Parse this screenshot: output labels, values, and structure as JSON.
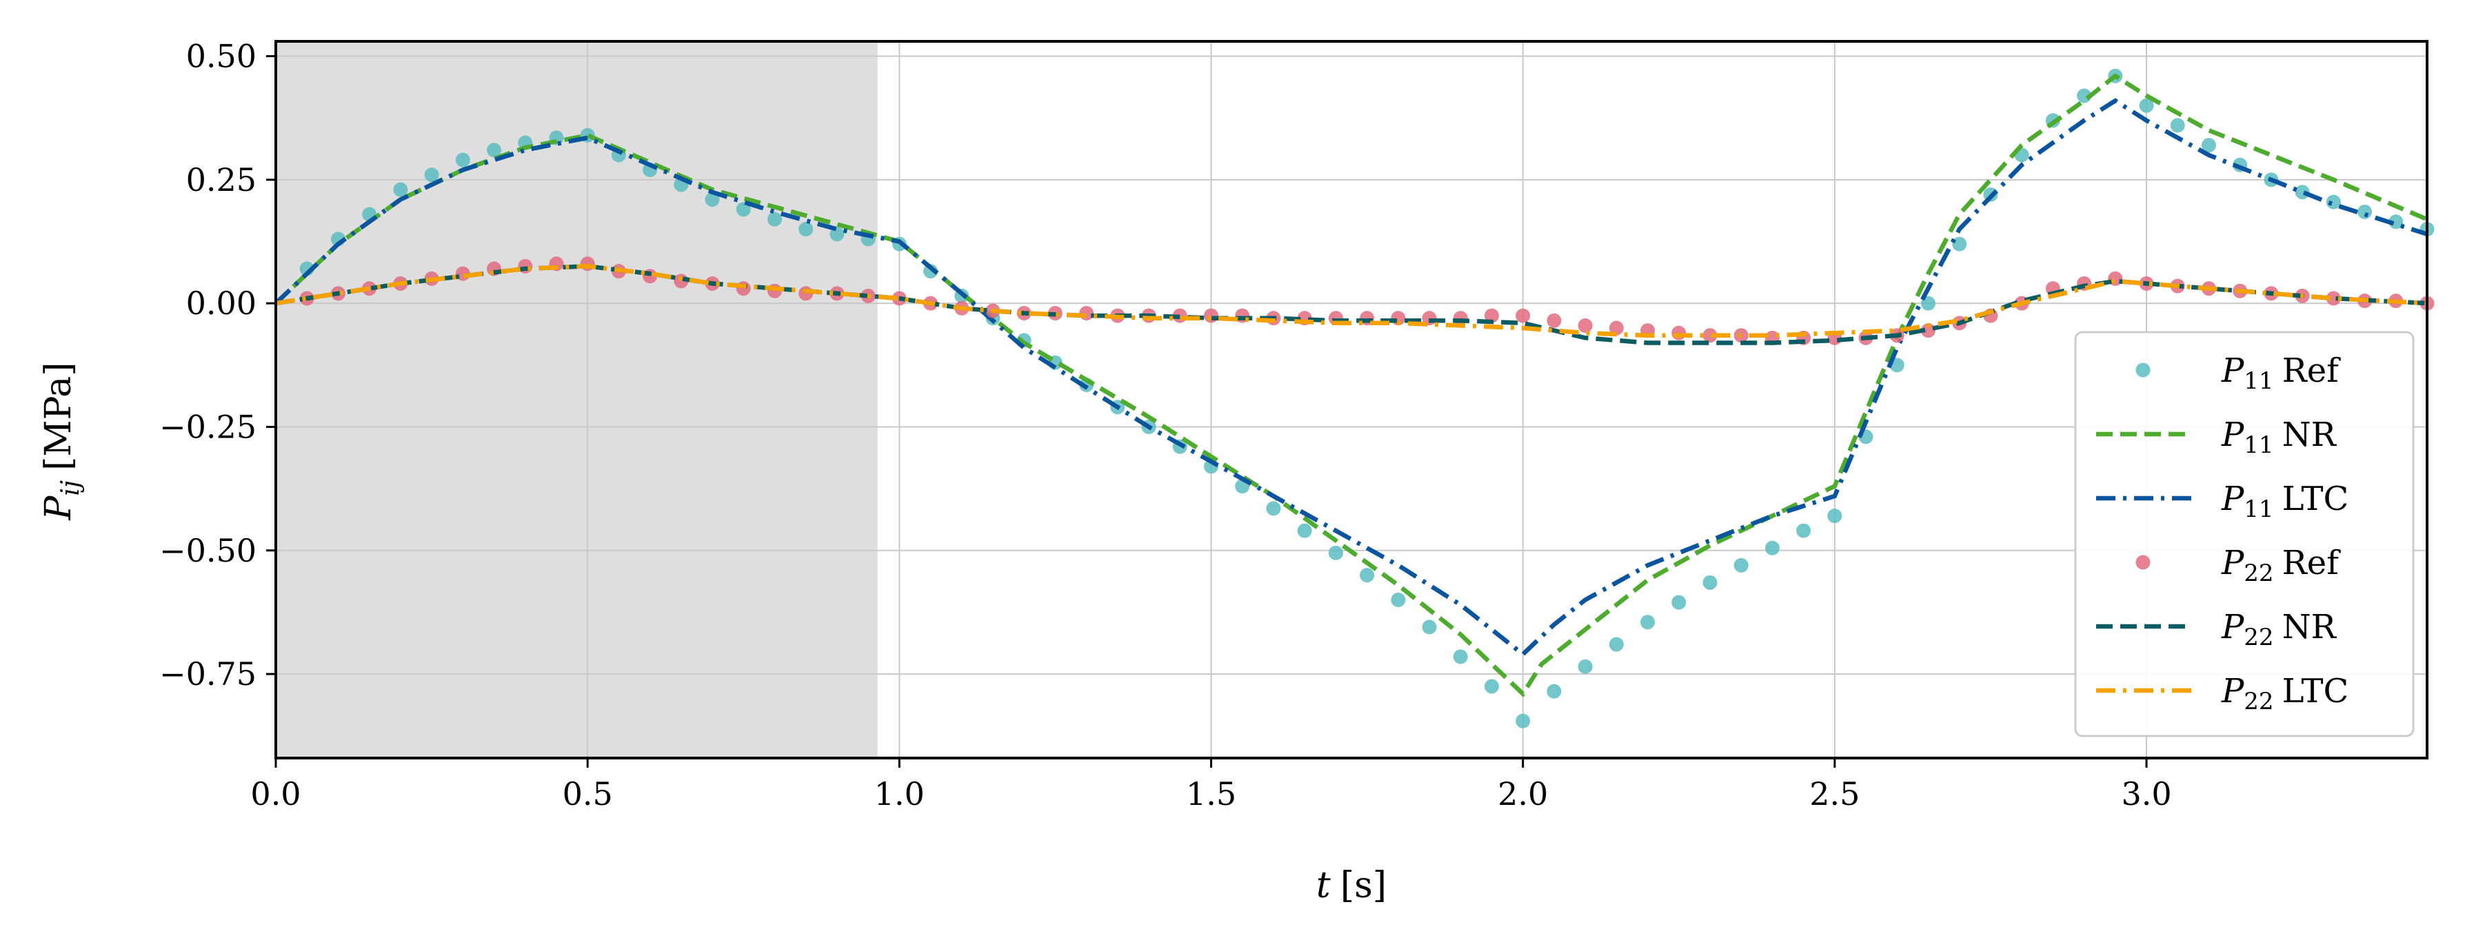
{
  "chart_data": {
    "type": "line",
    "xlabel_var": "t",
    "xlabel_unit": "[s]",
    "ylabel_var": "P",
    "ylabel_sub": "ij",
    "ylabel_unit": "[MPa]",
    "xlim": [
      0.0,
      3.45
    ],
    "ylim": [
      -0.92,
      0.53
    ],
    "x_ticks": [
      0.0,
      0.5,
      1.0,
      1.5,
      2.0,
      2.5,
      3.0
    ],
    "x_tick_labels": [
      "0.0",
      "0.5",
      "1.0",
      "1.5",
      "2.0",
      "2.5",
      "3.0"
    ],
    "y_ticks": [
      0.5,
      0.25,
      0.0,
      -0.25,
      -0.5,
      -0.75
    ],
    "y_tick_labels": [
      "0.50",
      "0.25",
      "0.00",
      "−0.25",
      "−0.50",
      "−0.75"
    ],
    "grid": true,
    "legend_position": "lower-right",
    "shaded_region": {
      "x_start": 0.0,
      "x_end": 0.965,
      "color": "#dedede"
    },
    "colors": {
      "p11_ref": "#5bbcc0",
      "p11_nr": "#4dab2e",
      "p11_ltc": "#0b559f",
      "p22_ref": "#e06b7c",
      "p22_nr": "#0d5c63",
      "p22_ltc": "#f5a100"
    },
    "series": [
      {
        "id": "p11_ref",
        "sym": "P",
        "sub": "11",
        "name": "Ref",
        "kind": "points",
        "color": "#5bbcc0",
        "x": [
          0.05,
          0.1,
          0.15,
          0.2,
          0.25,
          0.3,
          0.35,
          0.4,
          0.45,
          0.5,
          0.55,
          0.6,
          0.65,
          0.7,
          0.75,
          0.8,
          0.85,
          0.9,
          0.95,
          1.0,
          1.05,
          1.1,
          1.15,
          1.2,
          1.25,
          1.3,
          1.35,
          1.4,
          1.45,
          1.5,
          1.55,
          1.6,
          1.65,
          1.7,
          1.75,
          1.8,
          1.85,
          1.9,
          1.95,
          2.0,
          2.05,
          2.1,
          2.15,
          2.2,
          2.25,
          2.3,
          2.35,
          2.4,
          2.45,
          2.5,
          2.55,
          2.6,
          2.65,
          2.7,
          2.75,
          2.8,
          2.85,
          2.9,
          2.95,
          3.0,
          3.05,
          3.1,
          3.15,
          3.2,
          3.25,
          3.3,
          3.35,
          3.4,
          3.45
        ],
        "y": [
          0.07,
          0.13,
          0.18,
          0.23,
          0.26,
          0.29,
          0.31,
          0.325,
          0.335,
          0.34,
          0.3,
          0.27,
          0.24,
          0.21,
          0.19,
          0.17,
          0.15,
          0.14,
          0.13,
          0.12,
          0.065,
          0.015,
          -0.03,
          -0.075,
          -0.12,
          -0.165,
          -0.21,
          -0.25,
          -0.29,
          -0.33,
          -0.37,
          -0.415,
          -0.46,
          -0.505,
          -0.55,
          -0.6,
          -0.655,
          -0.715,
          -0.775,
          -0.845,
          -0.785,
          -0.735,
          -0.69,
          -0.645,
          -0.605,
          -0.565,
          -0.53,
          -0.495,
          -0.46,
          -0.43,
          -0.27,
          -0.125,
          0.0,
          0.12,
          0.22,
          0.3,
          0.37,
          0.42,
          0.46,
          0.4,
          0.36,
          0.32,
          0.28,
          0.25,
          0.225,
          0.205,
          0.185,
          0.165,
          0.15
        ]
      },
      {
        "id": "p11_nr",
        "sym": "P",
        "sub": "11",
        "name": "NR",
        "kind": "dashed",
        "color": "#4dab2e",
        "x": [
          0.0,
          0.1,
          0.2,
          0.3,
          0.4,
          0.5,
          0.6,
          0.7,
          0.8,
          0.9,
          1.0,
          1.1,
          1.2,
          1.3,
          1.4,
          1.5,
          1.6,
          1.7,
          1.8,
          1.9,
          2.0,
          2.03,
          2.1,
          2.2,
          2.3,
          2.4,
          2.5,
          2.55,
          2.6,
          2.65,
          2.7,
          2.8,
          2.9,
          2.95,
          3.0,
          3.1,
          3.2,
          3.3,
          3.45
        ],
        "y": [
          0.0,
          0.12,
          0.21,
          0.27,
          0.315,
          0.34,
          0.285,
          0.23,
          0.195,
          0.16,
          0.125,
          0.02,
          -0.08,
          -0.155,
          -0.23,
          -0.31,
          -0.39,
          -0.48,
          -0.57,
          -0.67,
          -0.79,
          -0.73,
          -0.66,
          -0.56,
          -0.49,
          -0.43,
          -0.37,
          -0.22,
          -0.07,
          0.06,
          0.18,
          0.32,
          0.41,
          0.46,
          0.42,
          0.35,
          0.3,
          0.25,
          0.17
        ]
      },
      {
        "id": "p11_ltc",
        "sym": "P",
        "sub": "11",
        "name": "LTC",
        "kind": "dashdot",
        "color": "#0b559f",
        "x": [
          0.0,
          0.1,
          0.2,
          0.3,
          0.4,
          0.5,
          0.6,
          0.7,
          0.8,
          0.9,
          1.0,
          1.1,
          1.2,
          1.3,
          1.4,
          1.5,
          1.6,
          1.7,
          1.8,
          1.9,
          2.0,
          2.05,
          2.1,
          2.2,
          2.3,
          2.4,
          2.5,
          2.55,
          2.6,
          2.65,
          2.7,
          2.8,
          2.9,
          2.95,
          3.0,
          3.1,
          3.2,
          3.3,
          3.45
        ],
        "y": [
          0.0,
          0.12,
          0.21,
          0.27,
          0.31,
          0.335,
          0.28,
          0.225,
          0.185,
          0.15,
          0.125,
          0.02,
          -0.09,
          -0.17,
          -0.25,
          -0.32,
          -0.39,
          -0.46,
          -0.53,
          -0.61,
          -0.71,
          -0.65,
          -0.6,
          -0.53,
          -0.48,
          -0.43,
          -0.39,
          -0.24,
          -0.09,
          0.03,
          0.15,
          0.28,
          0.37,
          0.41,
          0.37,
          0.3,
          0.25,
          0.2,
          0.14
        ]
      },
      {
        "id": "p22_ref",
        "sym": "P",
        "sub": "22",
        "name": "Ref",
        "kind": "points",
        "color": "#e06b7c",
        "x": [
          0.05,
          0.1,
          0.15,
          0.2,
          0.25,
          0.3,
          0.35,
          0.4,
          0.45,
          0.5,
          0.55,
          0.6,
          0.65,
          0.7,
          0.75,
          0.8,
          0.85,
          0.9,
          0.95,
          1.0,
          1.05,
          1.1,
          1.15,
          1.2,
          1.25,
          1.3,
          1.35,
          1.4,
          1.45,
          1.5,
          1.55,
          1.6,
          1.65,
          1.7,
          1.75,
          1.8,
          1.85,
          1.9,
          1.95,
          2.0,
          2.05,
          2.1,
          2.15,
          2.2,
          2.25,
          2.3,
          2.35,
          2.4,
          2.45,
          2.5,
          2.55,
          2.6,
          2.65,
          2.7,
          2.75,
          2.8,
          2.85,
          2.9,
          2.95,
          3.0,
          3.05,
          3.1,
          3.15,
          3.2,
          3.25,
          3.3,
          3.35,
          3.4,
          3.45
        ],
        "y": [
          0.01,
          0.02,
          0.03,
          0.04,
          0.05,
          0.06,
          0.07,
          0.075,
          0.08,
          0.08,
          0.065,
          0.055,
          0.045,
          0.04,
          0.03,
          0.025,
          0.02,
          0.02,
          0.015,
          0.01,
          0.0,
          -0.01,
          -0.015,
          -0.02,
          -0.02,
          -0.02,
          -0.025,
          -0.025,
          -0.025,
          -0.025,
          -0.025,
          -0.03,
          -0.03,
          -0.03,
          -0.03,
          -0.03,
          -0.03,
          -0.03,
          -0.025,
          -0.025,
          -0.035,
          -0.045,
          -0.05,
          -0.055,
          -0.06,
          -0.065,
          -0.065,
          -0.07,
          -0.07,
          -0.07,
          -0.07,
          -0.065,
          -0.055,
          -0.04,
          -0.025,
          0.0,
          0.03,
          0.04,
          0.05,
          0.04,
          0.035,
          0.03,
          0.025,
          0.02,
          0.015,
          0.01,
          0.005,
          0.005,
          0.0
        ]
      },
      {
        "id": "p22_nr",
        "sym": "P",
        "sub": "22",
        "name": "NR",
        "kind": "dashed",
        "color": "#0d5c63",
        "x": [
          0.0,
          0.1,
          0.2,
          0.3,
          0.4,
          0.5,
          0.6,
          0.7,
          0.8,
          0.9,
          1.0,
          1.1,
          1.2,
          1.3,
          1.4,
          1.5,
          1.6,
          1.7,
          1.8,
          1.9,
          2.0,
          2.1,
          2.2,
          2.3,
          2.4,
          2.5,
          2.6,
          2.7,
          2.8,
          2.9,
          2.95,
          3.0,
          3.1,
          3.2,
          3.3,
          3.45
        ],
        "y": [
          0.0,
          0.02,
          0.04,
          0.055,
          0.07,
          0.075,
          0.06,
          0.04,
          0.03,
          0.02,
          0.01,
          -0.01,
          -0.02,
          -0.025,
          -0.025,
          -0.03,
          -0.03,
          -0.035,
          -0.035,
          -0.035,
          -0.04,
          -0.07,
          -0.08,
          -0.08,
          -0.08,
          -0.075,
          -0.065,
          -0.04,
          0.005,
          0.035,
          0.045,
          0.04,
          0.03,
          0.02,
          0.01,
          0.0
        ]
      },
      {
        "id": "p22_ltc",
        "sym": "P",
        "sub": "22",
        "name": "LTC",
        "kind": "dashdot",
        "color": "#f5a100",
        "x": [
          0.0,
          0.1,
          0.2,
          0.3,
          0.4,
          0.5,
          0.6,
          0.7,
          0.8,
          0.9,
          1.0,
          1.1,
          1.2,
          1.3,
          1.4,
          1.5,
          1.6,
          1.7,
          1.8,
          1.9,
          2.0,
          2.1,
          2.2,
          2.3,
          2.4,
          2.5,
          2.6,
          2.7,
          2.8,
          2.9,
          2.95,
          3.0,
          3.1,
          3.2,
          3.3,
          3.45
        ],
        "y": [
          0.0,
          0.02,
          0.04,
          0.055,
          0.07,
          0.075,
          0.06,
          0.04,
          0.03,
          0.02,
          0.01,
          -0.01,
          -0.02,
          -0.025,
          -0.03,
          -0.03,
          -0.035,
          -0.04,
          -0.04,
          -0.045,
          -0.05,
          -0.06,
          -0.065,
          -0.065,
          -0.065,
          -0.06,
          -0.055,
          -0.035,
          0.0,
          0.03,
          0.045,
          0.04,
          0.03,
          0.02,
          0.01,
          0.0
        ]
      }
    ]
  }
}
